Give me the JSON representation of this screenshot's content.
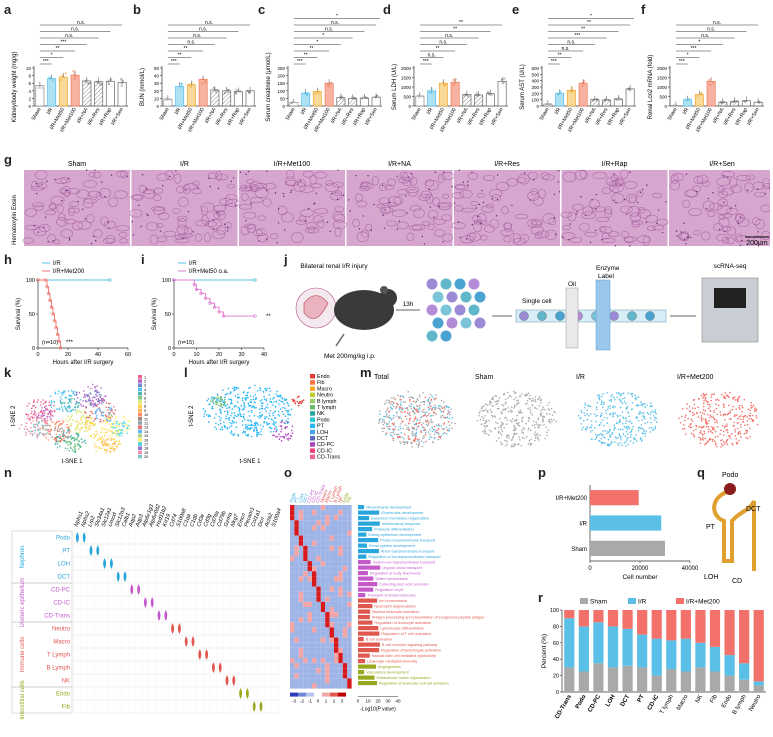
{
  "panel_letters": [
    "a",
    "b",
    "c",
    "d",
    "e",
    "f",
    "g",
    "h",
    "i",
    "j",
    "k",
    "l",
    "m",
    "n",
    "o",
    "p",
    "q",
    "r"
  ],
  "groups": [
    "Sham",
    "I/R",
    "I/R+Met50",
    "I/R+Met100",
    "I/R+NA",
    "I/R+Res",
    "I/R+Rap",
    "I/R+Sen"
  ],
  "sig_labels": [
    "n.s.",
    "*",
    "**",
    "***"
  ],
  "chart_data": [
    {
      "id": "a",
      "type": "bar",
      "ylabel": "Kidney/body weight (mg/g)",
      "ylim": [
        0,
        10
      ],
      "yticks": [
        0,
        2,
        4,
        6,
        8,
        10
      ],
      "categories": [
        "Sham",
        "I/R",
        "I/R+Met50",
        "I/R+Met100",
        "I/R+NA",
        "I/R+Res",
        "I/R+Rap",
        "I/R+Sen"
      ],
      "values": [
        5.4,
        7.2,
        7.6,
        8.1,
        6.6,
        6.4,
        6.5,
        6.2
      ],
      "sig": [
        "***",
        "*",
        "**",
        "***",
        "n.s.",
        "n.s.",
        "n.s."
      ]
    },
    {
      "id": "b",
      "type": "bar",
      "ylabel": "BUN (mmol/L)",
      "ylim": [
        0,
        50
      ],
      "yticks": [
        0,
        10,
        20,
        30,
        40,
        50
      ],
      "categories": [
        "Sham",
        "I/R",
        "I/R+Met50",
        "I/R+Met100",
        "I/R+NA",
        "I/R+Res",
        "I/R+Rap",
        "I/R+Sen"
      ],
      "values": [
        9,
        26,
        28,
        35,
        21,
        20,
        19,
        20
      ],
      "sig": [
        "***",
        "**",
        "**",
        "n.s.",
        "n.s.",
        "n.s.",
        "n.s."
      ]
    },
    {
      "id": "c",
      "type": "bar",
      "ylabel": "Serum creatinine (μmol/L)",
      "ylim": [
        0,
        250
      ],
      "yticks": [
        0,
        50,
        100,
        150,
        200,
        250
      ],
      "categories": [
        "Sham",
        "I/R",
        "I/R+Met50",
        "I/R+Met100",
        "I/R+NA",
        "I/R+Res",
        "I/R+Rap",
        "I/R+Sen"
      ],
      "values": [
        22,
        85,
        95,
        150,
        55,
        50,
        52,
        58
      ],
      "sig": [
        "***",
        "**",
        "**",
        "*",
        "*",
        "n.s.",
        "n.s.",
        "*"
      ]
    },
    {
      "id": "d",
      "type": "bar",
      "ylabel": "Serum LDH (U/L)",
      "ylim": [
        0,
        2000
      ],
      "yticks": [
        0,
        500,
        1000,
        1500,
        2000
      ],
      "categories": [
        "Sham",
        "I/R",
        "I/R+Met50",
        "I/R+Met100",
        "I/R+NA",
        "I/R+Res",
        "I/R+Rap",
        "I/R+Sen"
      ],
      "values": [
        520,
        800,
        1200,
        1250,
        600,
        580,
        650,
        1300
      ],
      "sig": [
        "***",
        "n.s.",
        "**",
        "n.s.",
        "n.s.",
        "**",
        "**"
      ]
    },
    {
      "id": "e",
      "type": "bar",
      "ylabel": "Serum AST (U/L)",
      "ylim": [
        0,
        600
      ],
      "yticks": [
        0,
        100,
        200,
        300,
        400,
        500,
        600
      ],
      "categories": [
        "Sham",
        "I/R",
        "I/R+Met50",
        "I/R+Met100",
        "I/R+NA",
        "I/R+Res",
        "I/R+Rap",
        "I/R+Sen"
      ],
      "values": [
        30,
        200,
        250,
        360,
        100,
        95,
        110,
        270
      ],
      "sig": [
        "***",
        "**",
        "n.s.",
        "n.s.",
        "***",
        "**",
        "**",
        "*"
      ]
    },
    {
      "id": "f",
      "type": "bar",
      "ylabel": "Renal Lcn2 mRNA (fold)",
      "ylim": [
        0,
        2000
      ],
      "yticks": [
        0,
        500,
        1000,
        1500,
        2000
      ],
      "categories": [
        "Sham",
        "I/R",
        "I/R+Met50",
        "I/R+Met100",
        "I/R+NA",
        "I/R+Res",
        "I/R+Rap",
        "I/R+Sen"
      ],
      "values": [
        20,
        330,
        600,
        1300,
        200,
        250,
        280,
        200
      ],
      "sig": [
        "***",
        "*",
        "***",
        "*",
        "n.s.",
        "n.s.",
        "n.s."
      ]
    },
    {
      "id": "h",
      "type": "line",
      "ylabel": "Survival (%)",
      "xlabel": "Hours after I/R surgery",
      "ylim": [
        0,
        100
      ],
      "xlim": [
        0,
        60
      ],
      "yticks": [
        0,
        50,
        100
      ],
      "xticks": [
        0,
        20,
        40,
        60
      ],
      "note": "(n=10)",
      "sig": "***",
      "series": [
        {
          "name": "I/R",
          "x": [
            0,
            48
          ],
          "y": [
            100,
            100
          ]
        },
        {
          "name": "I/R+Met200",
          "x": [
            0,
            5,
            6,
            7,
            8,
            9,
            10,
            11,
            12,
            13,
            14,
            15
          ],
          "y": [
            100,
            100,
            90,
            80,
            70,
            60,
            50,
            40,
            30,
            20,
            10,
            0
          ]
        }
      ]
    },
    {
      "id": "i",
      "type": "line",
      "ylabel": "Survival (%)",
      "xlabel": "Hours after I/R surgery",
      "ylim": [
        0,
        100
      ],
      "xlim": [
        0,
        40
      ],
      "yticks": [
        0,
        50,
        100
      ],
      "xticks": [
        0,
        10,
        20,
        30,
        40
      ],
      "note": "(n=15)",
      "sig": "**",
      "series": [
        {
          "name": "I/R",
          "x": [
            0,
            36
          ],
          "y": [
            100,
            100
          ]
        },
        {
          "name": "I/R+Met50 o.a.",
          "x": [
            0,
            9,
            10,
            12,
            14,
            16,
            18,
            20,
            22,
            36
          ],
          "y": [
            100,
            93,
            86,
            80,
            73,
            66,
            60,
            53,
            47,
            47
          ]
        }
      ]
    },
    {
      "id": "p",
      "type": "bar",
      "xlabel": "Cell number",
      "xlim": [
        0,
        40000
      ],
      "xticks": [
        0,
        20000,
        40000
      ],
      "categories": [
        "I/R+Met200",
        "I/R",
        "Sham"
      ],
      "values": [
        19500,
        28500,
        30000
      ]
    },
    {
      "id": "r",
      "type": "bar",
      "ylabel": "Percent (%)",
      "ylim": [
        0,
        100
      ],
      "yticks": [
        0,
        20,
        40,
        60,
        80,
        100
      ],
      "categories": [
        "CD-Trans",
        "Podo",
        "CD-PC",
        "LOH",
        "DCT",
        "PT",
        "CD-IC",
        "T lymph",
        "Macro",
        "NK",
        "Fib",
        "Endo",
        "B lymph",
        "Neutro"
      ],
      "series": [
        {
          "name": "Sham",
          "values": [
            30,
            25,
            35,
            30,
            32,
            30,
            20,
            28,
            25,
            30,
            25,
            20,
            15,
            8
          ]
        },
        {
          "name": "I/R",
          "values": [
            60,
            55,
            50,
            50,
            45,
            40,
            45,
            35,
            40,
            30,
            30,
            25,
            20,
            5
          ]
        },
        {
          "name": "I/R+Met200",
          "values": [
            10,
            20,
            15,
            20,
            23,
            30,
            35,
            37,
            35,
            40,
            45,
            55,
            65,
            87
          ]
        }
      ]
    }
  ],
  "panel_g": {
    "titles": [
      "Sham",
      "I/R",
      "I/R+Met100",
      "I/R+NA",
      "I/R+Res",
      "I/R+Rap",
      "I/R+Sen"
    ],
    "side_label": "Hematoxylin Eosin",
    "scale": "200μm"
  },
  "panel_j": {
    "injury": "Bilateral renal I/R injury",
    "dose": "Met 200mg/kg i.p.",
    "time": "13h",
    "single_cell": "Single cell",
    "oil": "Oil",
    "enzyme": "Enzyme",
    "label": "Label",
    "seq": "scRNA-seq"
  },
  "panel_k": {
    "xlabel": "t-SNE 1",
    "ylabel": "t-SNE 2",
    "clusters": [
      "1",
      "2",
      "3",
      "4",
      "5",
      "6",
      "7",
      "8",
      "9",
      "10",
      "11",
      "12",
      "13",
      "14",
      "15",
      "16",
      "17",
      "18",
      "19",
      "20"
    ]
  },
  "panel_l": {
    "xlabel": "t-SNE 1",
    "ylabel": "t-SNE 2",
    "legend": [
      "Endo",
      "Fib",
      "Macro",
      "Neutro",
      "B lymph",
      "T lymph",
      "NK",
      "Podo",
      "PT",
      "LOH",
      "DCT",
      "CD-PC",
      "CD-IC",
      "CD-Trans"
    ]
  },
  "panel_m": {
    "titles": [
      "Total",
      "Sham",
      "I/R",
      "I/R+Met200"
    ]
  },
  "panel_n": {
    "genes": [
      "Nphs1",
      "Nphs2",
      "Lrp2",
      "Slc34a1",
      "Slc12a1",
      "Umod",
      "Slc12a3",
      "Calb1",
      "Aqp2",
      "Aqp3",
      "Atp6v1g3",
      "Atp6v0d2",
      "Hsd11b2",
      "Krt19",
      "Cd74",
      "S100a8",
      "C1qa",
      "C1qb",
      "Cd3e",
      "Cd3g",
      "Cd79a",
      "Cd79b",
      "Gzma",
      "Nkg7",
      "Emcn",
      "Pecam1",
      "Col1a1",
      "Dcn",
      "Acta2",
      "S100a4"
    ],
    "groups": [
      {
        "name": "Nephron",
        "cells": [
          "Podo",
          "PT",
          "LOH",
          "DCT"
        ]
      },
      {
        "name": "Ureteric epithelium",
        "cells": [
          "CD-PC",
          "CD-IC",
          "CD-Trans"
        ]
      },
      {
        "name": "Immune cells",
        "cells": [
          "Neutro",
          "Macro",
          "T Lymph",
          "B Lymph",
          "NK"
        ]
      },
      {
        "name": "Interstitial cells",
        "cells": [
          "Endo",
          "Fib"
        ]
      }
    ]
  },
  "panel_o": {
    "columns": [
      "Podo",
      "PT",
      "LOH",
      "DCT",
      "CD-PC",
      "CD-IC",
      "CD-Trans",
      "Neutro",
      "Macro",
      "T Lymph",
      "B Lymph",
      "NK",
      "Endo",
      "Fib"
    ],
    "scale_ticks": [
      "-3",
      "-2",
      "-1",
      "0",
      "1",
      "2",
      "3"
    ],
    "bar_ticks": [
      "0",
      "10",
      "20",
      "30",
      "40"
    ],
    "bar_label": "-Log10(P value)",
    "terms": [
      "Mesenchyme development",
      "Glomerulus development",
      "Basement membrane organization",
      "Inflammatory response",
      "Podocyte differentiation",
      "Kidney epithelium development",
      "Proton transmembrane transport",
      "Renal system development",
      "Anion transmembrane transport",
      "Regulation of ion transmembrane transport",
      "Sodium ion transmembrane transport",
      "Organic anion transport",
      "Regulation of body fluid levels",
      "Water homeostasis",
      "Collecting duct acid secretion",
      "Regulation of pH",
      "Transport of small molecules",
      "Ion homeostasis",
      "Neutrophil degranulation",
      "Myeloid leukocyte activation",
      "Antigen processing and presentation of exogenous peptide antigen",
      "Regulation of leukocyte activation",
      "Lymphocyte differentiation",
      "Regulation of T cell activation",
      "B cell activation",
      "B cell receptor signaling pathway",
      "Regulation of lymphocyte activation",
      "Natural killer cell mediated cytotoxicity",
      "Leukocyte mediated immunity",
      "Angiogenesis",
      "Vasculature development",
      "Extracellular matrix organization",
      "Regulation of leukocyte cell-cell adhesion"
    ]
  },
  "panel_q": {
    "labels": [
      "Podo",
      "PT",
      "DCT",
      "LOH",
      "CD"
    ]
  },
  "colors": {
    "sham": "#a9a9a9",
    "ir": "#5bc0e8",
    "met": "#f2726b",
    "bar_a": "#f6c26b",
    "bar_b": "#f59a84"
  }
}
